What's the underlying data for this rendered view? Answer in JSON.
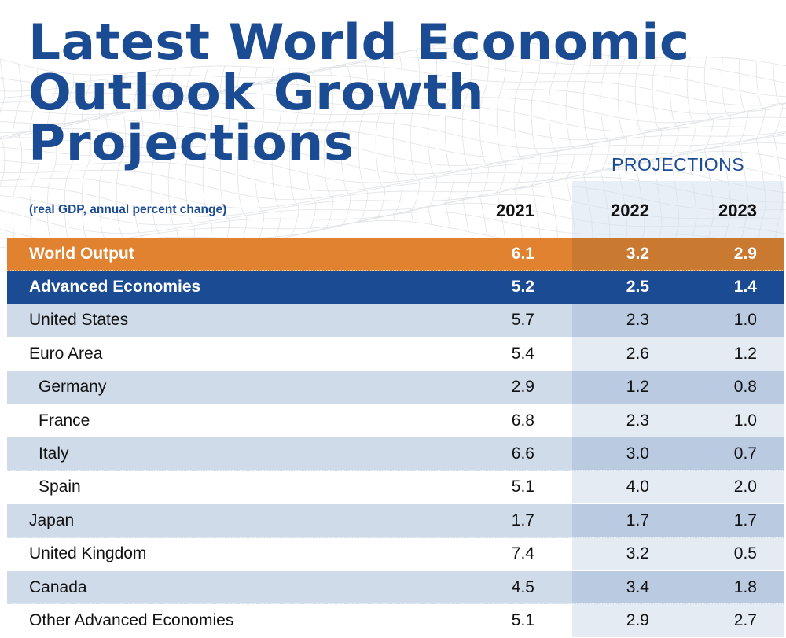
{
  "title_lines": [
    "Latest World Economic",
    "Outlook Growth Projections"
  ],
  "projections_label": "PROJECTIONS",
  "subtitle": "(real GDP, annual percent change)",
  "columns": [
    "2021",
    "2022",
    "2023"
  ],
  "colors": {
    "brand_blue": "#1b4c93",
    "world_orange": "#e0822f",
    "row_shade": "#cfdbe9"
  },
  "rows": [
    {
      "label": "World Output",
      "style": "world",
      "values": [
        "6.1",
        "3.2",
        "2.9"
      ]
    },
    {
      "label": "Advanced Economies",
      "style": "adv",
      "values": [
        "5.2",
        "2.5",
        "1.4"
      ]
    },
    {
      "label": "United States",
      "style": "shade",
      "values": [
        "5.7",
        "2.3",
        "1.0"
      ]
    },
    {
      "label": "Euro Area",
      "style": "plain",
      "values": [
        "5.4",
        "2.6",
        "1.2"
      ]
    },
    {
      "label": "Germany",
      "style": "shade indent",
      "values": [
        "2.9",
        "1.2",
        "0.8"
      ]
    },
    {
      "label": "France",
      "style": "plain indent",
      "values": [
        "6.8",
        "2.3",
        "1.0"
      ]
    },
    {
      "label": "Italy",
      "style": "shade indent",
      "values": [
        "6.6",
        "3.0",
        "0.7"
      ]
    },
    {
      "label": "Spain",
      "style": "plain indent",
      "values": [
        "5.1",
        "4.0",
        "2.0"
      ]
    },
    {
      "label": "Japan",
      "style": "shade",
      "values": [
        "1.7",
        "1.7",
        "1.7"
      ]
    },
    {
      "label": "United Kingdom",
      "style": "plain",
      "values": [
        "7.4",
        "3.2",
        "0.5"
      ]
    },
    {
      "label": "Canada",
      "style": "shade",
      "values": [
        "4.5",
        "3.4",
        "1.8"
      ]
    },
    {
      "label": "Other Advanced Economies",
      "style": "plain",
      "values": [
        "5.1",
        "2.9",
        "2.7"
      ]
    }
  ]
}
